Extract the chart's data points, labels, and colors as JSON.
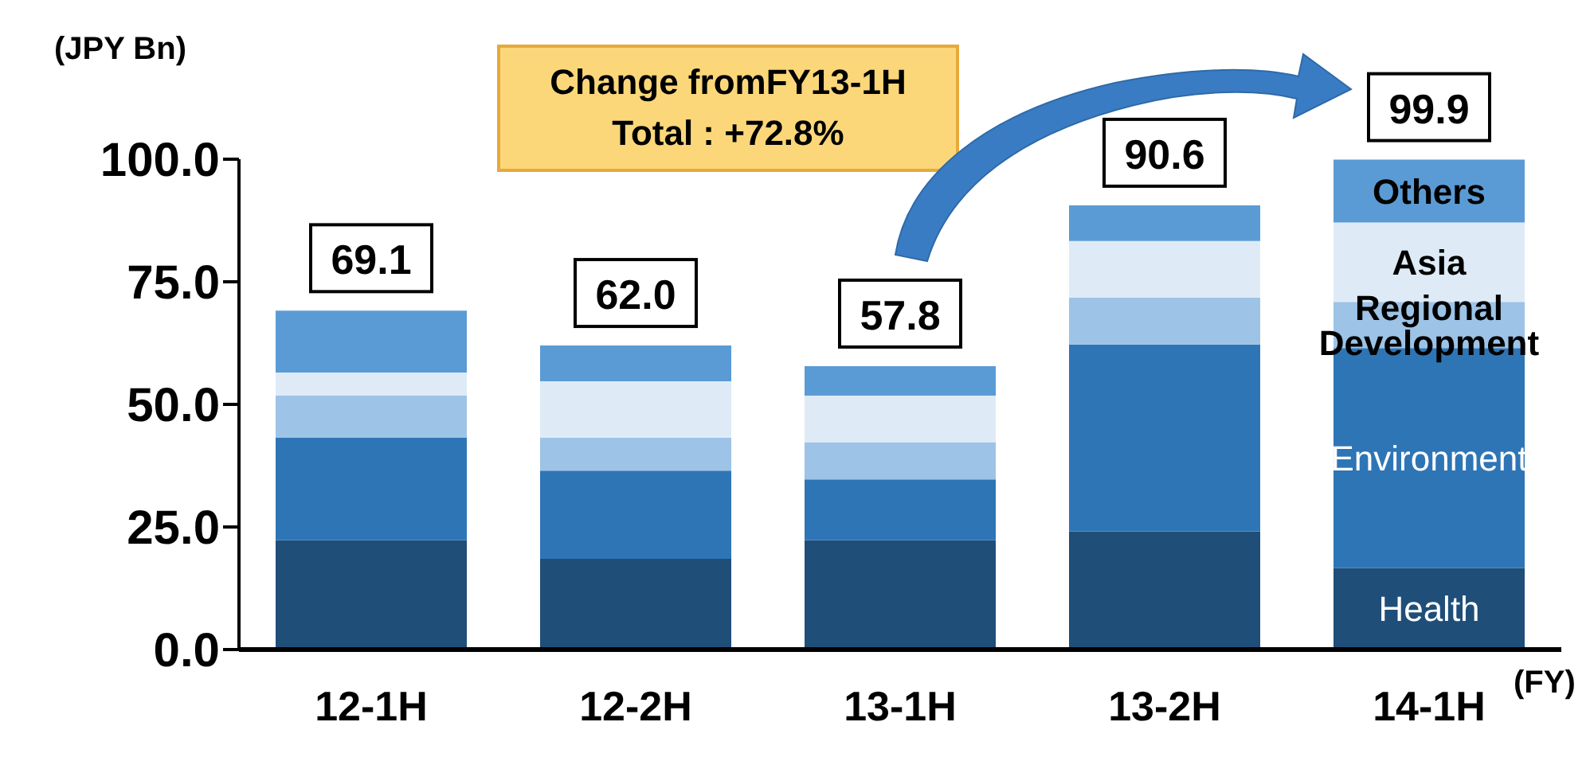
{
  "chart_data": {
    "type": "bar",
    "stacked": true,
    "ylabel": "(JPY Bn)",
    "xlabel": "(FY)",
    "annotations": [
      "Change fromFY13-1H",
      "Total : +72.8%"
    ],
    "categories": [
      "12-1H",
      "12-2H",
      "13-1H",
      "13-2H",
      "14-1H"
    ],
    "series": [
      {
        "name": "Health",
        "color": "#1f4e79",
        "values": [
          22.3,
          18.5,
          22.3,
          24.1,
          16.6
        ]
      },
      {
        "name": "Environment",
        "color": "#2e75b6",
        "values": [
          20.9,
          18.0,
          12.4,
          38.1,
          44.9
        ]
      },
      {
        "name": "Regional Development",
        "color": "#9dc3e6",
        "values": [
          8.6,
          6.7,
          7.6,
          9.6,
          9.4
        ]
      },
      {
        "name": "Asia",
        "color": "#deebf7",
        "values": [
          4.7,
          11.5,
          9.5,
          11.5,
          16.2
        ]
      },
      {
        "name": "Others",
        "color": "#5b9bd5",
        "values": [
          12.6,
          7.3,
          6.0,
          7.3,
          12.8
        ]
      }
    ],
    "totals": [
      "69.1",
      "62.0",
      "57.8",
      "90.6",
      "99.9"
    ],
    "ylim": [
      0,
      100
    ],
    "yticks": [
      {
        "value": 0,
        "label": "0.0"
      },
      {
        "value": 25,
        "label": "25.0"
      },
      {
        "value": 50,
        "label": "50.0"
      },
      {
        "value": 75,
        "label": "75.0"
      },
      {
        "value": 100,
        "label": "100.0"
      }
    ],
    "grid": false,
    "legend": false
  }
}
